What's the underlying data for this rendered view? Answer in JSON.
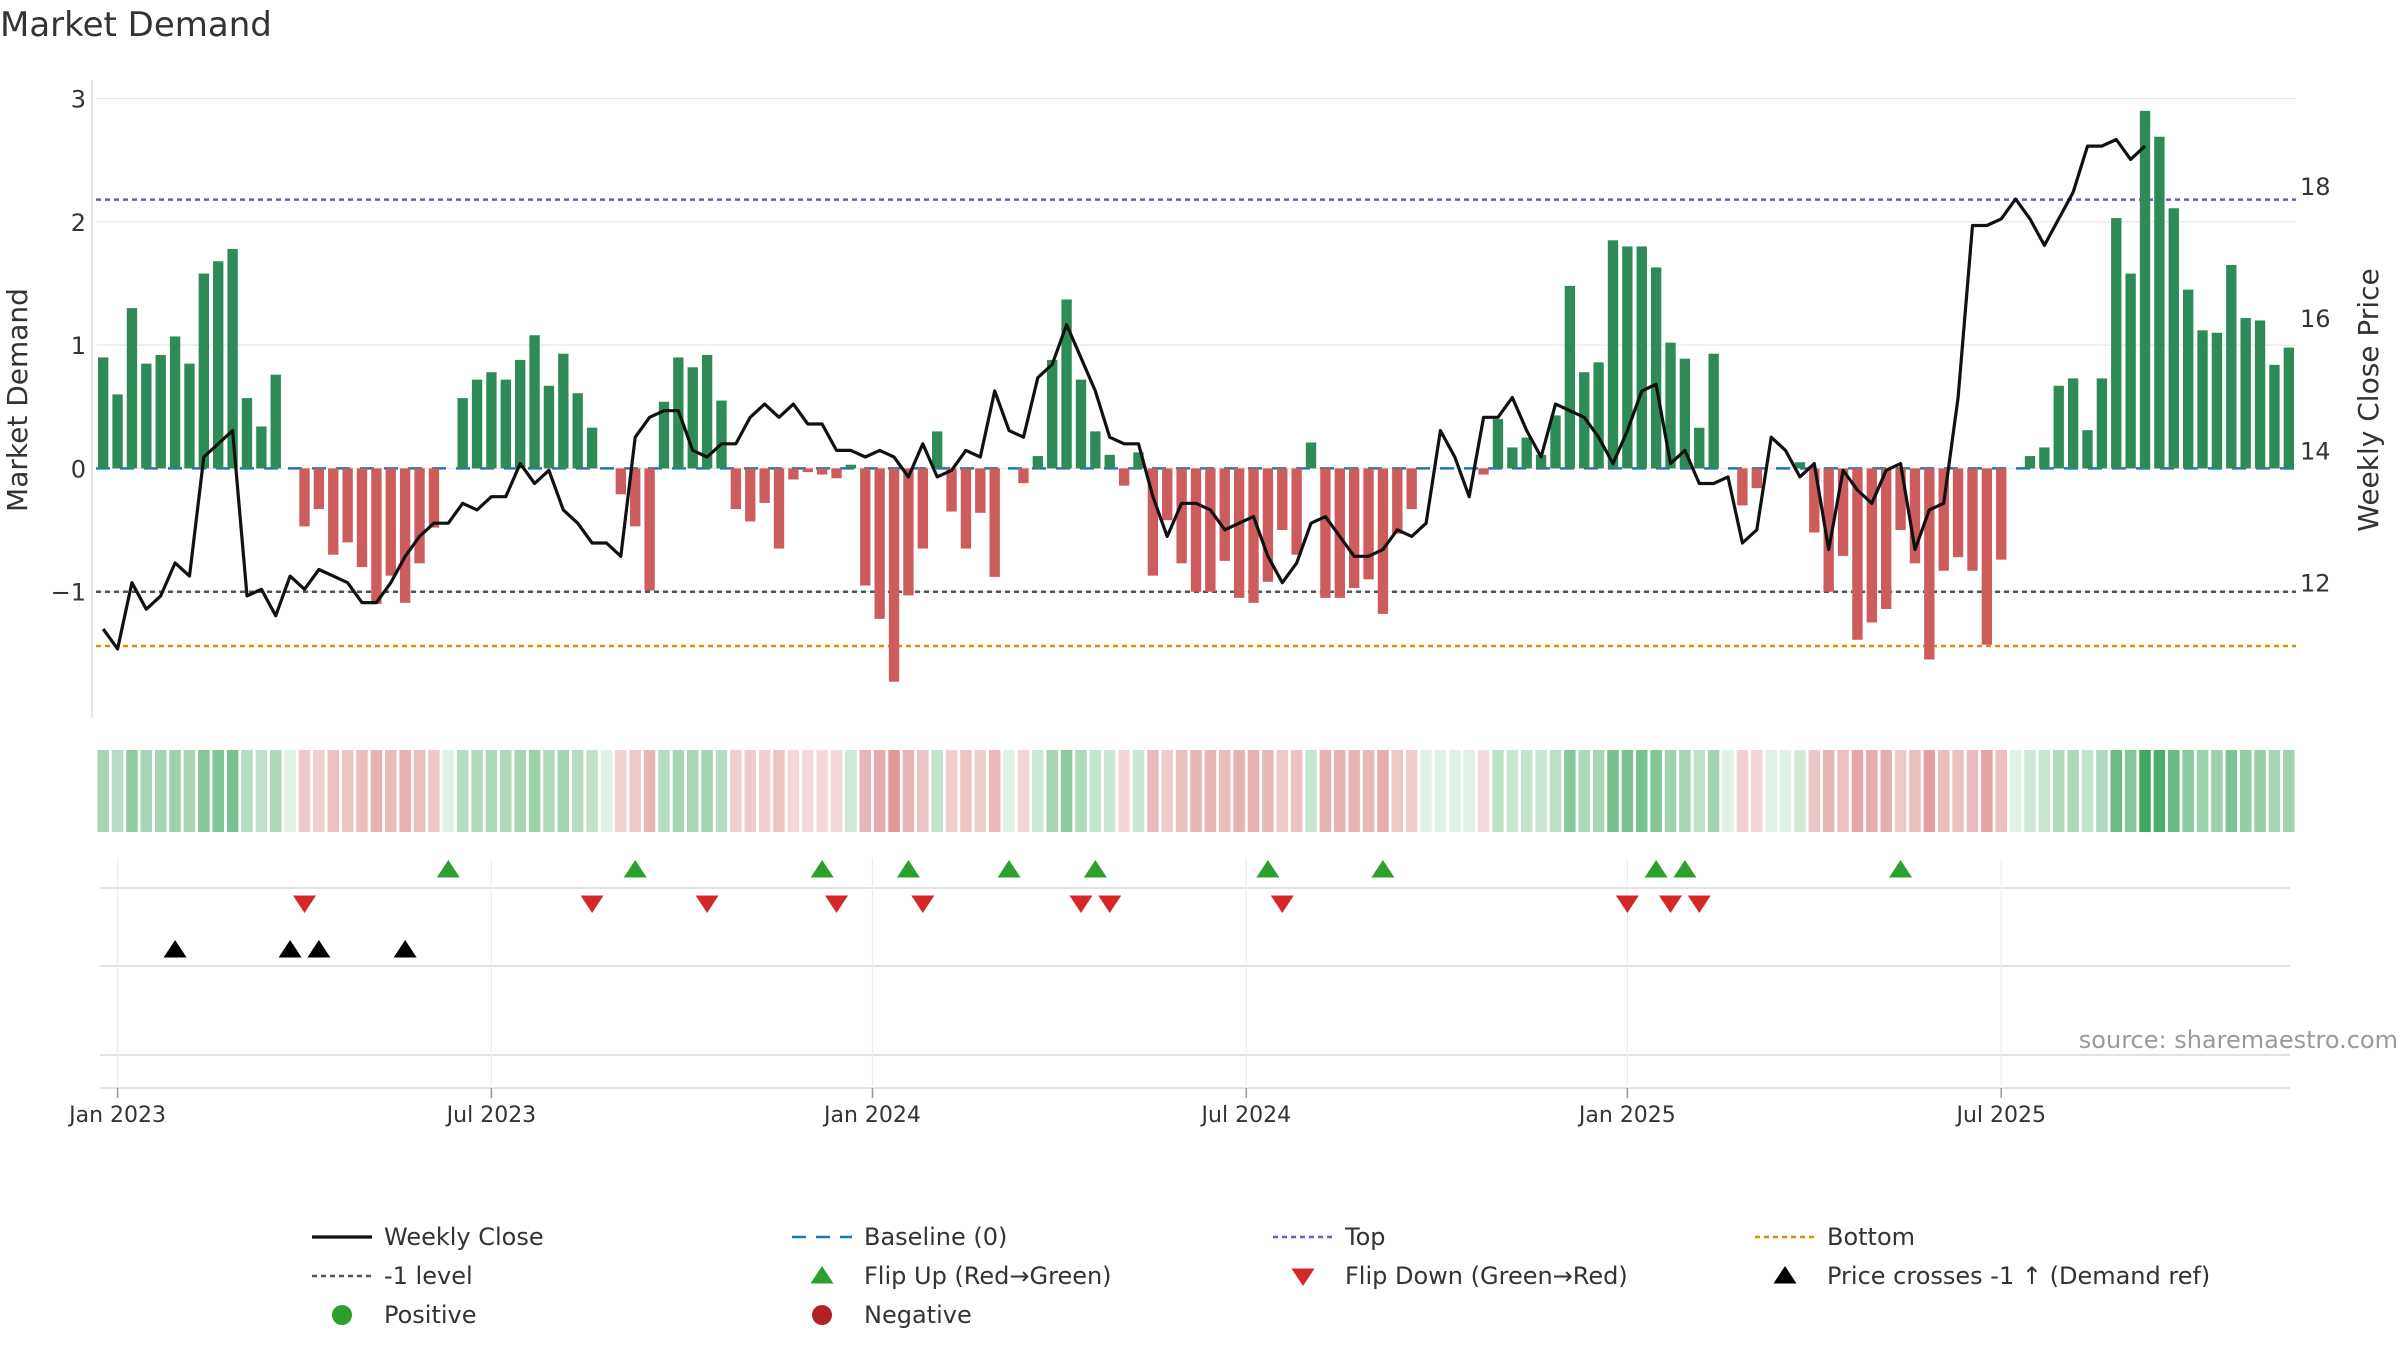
{
  "title": "Market Demand",
  "source": "source: sharemaestro.com",
  "colors": {
    "positive_bar": "#2e8b57",
    "negative_bar": "#cd5c5c",
    "close_line": "#111111",
    "baseline": "#1f77b4",
    "top_line": "#6a5acd",
    "minus1_line": "#555555",
    "bottom_line": "#d4900a",
    "flip_up": "#2ca02c",
    "flip_down": "#d62728",
    "cross_marker": "#000000",
    "strip_positive": "#2e9e4f",
    "strip_negative": "#cd5c5c",
    "legend_positive": "#2ca02c",
    "legend_negative": "#b22222",
    "grid": "#e6e6e6",
    "axis_text": "#333333"
  },
  "chart_data": {
    "type": "bar+line",
    "title": "Market Demand",
    "left_axis": {
      "label": "Market Demand",
      "range": [
        -2.0,
        3.15
      ],
      "ticks": [
        3,
        2,
        1,
        0,
        -1
      ],
      "tick_labels": [
        "3",
        "2",
        "1",
        "0",
        "−1"
      ]
    },
    "right_axis": {
      "label": "Weekly Close Price",
      "range": [
        10.0,
        19.6
      ],
      "ticks": [
        18,
        16,
        14,
        12
      ],
      "tick_labels": [
        "18",
        "16",
        "14",
        "12"
      ]
    },
    "x_axis": {
      "start_date": "2022-12-26",
      "weeks": 145,
      "ticks": [
        {
          "label": "Jan 2023",
          "week": 1
        },
        {
          "label": "Jul 2023",
          "week": 27
        },
        {
          "label": "Jan 2024",
          "week": 53.5
        },
        {
          "label": "Jul 2024",
          "week": 79.5
        },
        {
          "label": "Jan 2025",
          "week": 106
        },
        {
          "label": "Jul 2025",
          "week": 132
        }
      ]
    },
    "reference_lines": {
      "top": 2.18,
      "minus1": -1.0,
      "bottom": -1.44,
      "baseline": 0
    },
    "demand": [
      0.9,
      0.6,
      1.3,
      0.85,
      0.92,
      1.07,
      0.85,
      1.58,
      1.68,
      1.78,
      0.57,
      0.34,
      0.76,
      0,
      -0.47,
      -0.33,
      -0.7,
      -0.6,
      -0.8,
      -1.1,
      -0.87,
      -1.09,
      -0.77,
      -0.48,
      0,
      0.57,
      0.72,
      0.78,
      0.72,
      0.88,
      1.08,
      0.67,
      0.93,
      0.61,
      0.33,
      0,
      -0.21,
      -0.47,
      -0.99,
      0.54,
      0.9,
      0.82,
      0.92,
      0.55,
      -0.33,
      -0.43,
      -0.28,
      -0.65,
      -0.09,
      -0.03,
      -0.05,
      -0.08,
      0.03,
      -0.95,
      -1.22,
      -1.73,
      -1.03,
      -0.65,
      0.3,
      -0.35,
      -0.65,
      -0.36,
      -0.88,
      0,
      -0.12,
      0.1,
      0.88,
      1.37,
      0.72,
      0.3,
      0.11,
      -0.14,
      0.13,
      -0.87,
      -0.42,
      -0.77,
      -1.0,
      -1.0,
      -0.75,
      -1.05,
      -1.09,
      -0.92,
      -0.5,
      -0.7,
      0.21,
      -1.05,
      -1.05,
      -0.97,
      -0.9,
      -1.18,
      -0.53,
      -0.33,
      0,
      0,
      0,
      0,
      -0.05,
      0.4,
      0.17,
      0.25,
      0.11,
      0.43,
      1.48,
      0.78,
      0.86,
      1.85,
      1.8,
      1.8,
      1.63,
      1.02,
      0.89,
      0.33,
      0.93,
      0,
      -0.3,
      -0.16,
      0,
      0,
      0.05,
      -0.52,
      -1.0,
      -0.71,
      -1.39,
      -1.25,
      -1.14,
      -0.5,
      -0.77,
      -1.55,
      -0.83,
      -0.72,
      -0.83,
      -1.43,
      -0.74,
      0,
      0.1,
      0.17,
      0.67,
      0.73,
      0.31,
      0.73,
      2.03,
      1.58,
      2.9,
      2.69,
      2.11,
      1.45,
      1.12,
      1.1,
      1.65,
      1.22,
      1.2,
      0.84,
      0.98
    ],
    "weekly_close": [
      11.3,
      11.0,
      12.0,
      11.6,
      11.8,
      12.3,
      12.1,
      13.9,
      14.1,
      14.3,
      11.8,
      11.9,
      11.5,
      12.1,
      11.9,
      12.2,
      12.1,
      12.0,
      11.7,
      11.7,
      12.0,
      12.4,
      12.7,
      12.9,
      12.9,
      13.2,
      13.1,
      13.3,
      13.3,
      13.8,
      13.5,
      13.7,
      13.1,
      12.9,
      12.6,
      12.6,
      12.4,
      14.2,
      14.5,
      14.6,
      14.6,
      14.0,
      13.9,
      14.1,
      14.1,
      14.5,
      14.7,
      14.5,
      14.7,
      14.4,
      14.4,
      14.0,
      14.0,
      13.9,
      14.0,
      13.9,
      13.6,
      14.1,
      13.6,
      13.7,
      14.0,
      13.9,
      14.9,
      14.3,
      14.2,
      15.1,
      15.3,
      15.9,
      15.4,
      14.9,
      14.2,
      14.1,
      14.1,
      13.3,
      12.7,
      13.2,
      13.2,
      13.1,
      12.8,
      12.9,
      13.0,
      12.4,
      12.0,
      12.3,
      12.9,
      13.0,
      12.7,
      12.4,
      12.4,
      12.5,
      12.8,
      12.7,
      12.9,
      14.3,
      13.9,
      13.3,
      14.5,
      14.5,
      14.8,
      14.3,
      13.9,
      14.7,
      14.6,
      14.5,
      14.2,
      13.8,
      14.3,
      14.9,
      15.0,
      13.8,
      14.0,
      13.5,
      13.5,
      13.6,
      12.6,
      12.8,
      14.2,
      14.0,
      13.6,
      13.8,
      12.5,
      13.7,
      13.4,
      13.2,
      13.7,
      13.8,
      12.5,
      13.1,
      13.2,
      14.8,
      17.4,
      17.4,
      17.5,
      17.8,
      17.5,
      17.1,
      17.5,
      17.9,
      18.6,
      18.6,
      18.7,
      18.4,
      18.6
    ],
    "flip_up_weeks": [
      24,
      37,
      50,
      56,
      63,
      69,
      81,
      89,
      108,
      110,
      125
    ],
    "flip_down_weeks": [
      14,
      34,
      42,
      51,
      57,
      68,
      70,
      82,
      106,
      109,
      111
    ],
    "price_cross_weeks": [
      5,
      13,
      15,
      21
    ],
    "legend": [
      {
        "label": "Weekly Close",
        "kind": "line-solid",
        "color": "#111111"
      },
      {
        "label": "Baseline (0)",
        "kind": "line-dash",
        "color": "#1f77b4"
      },
      {
        "label": "Top",
        "kind": "line-dot",
        "color": "#6a5acd"
      },
      {
        "label": "Bottom",
        "kind": "line-dot",
        "color": "#d4900a"
      },
      {
        "label": "-1 level",
        "kind": "line-dot",
        "color": "#555555"
      },
      {
        "label": "Flip Up (Red→Green)",
        "kind": "tri-up",
        "color": "#2ca02c"
      },
      {
        "label": "Flip Down (Green→Red)",
        "kind": "tri-down",
        "color": "#d62728"
      },
      {
        "label": "Price crosses -1 ↑ (Demand ref)",
        "kind": "tri-up",
        "color": "#000000"
      },
      {
        "label": "Positive",
        "kind": "dot",
        "color": "#2ca02c"
      },
      {
        "label": "Negative",
        "kind": "dot",
        "color": "#b22222"
      }
    ]
  }
}
